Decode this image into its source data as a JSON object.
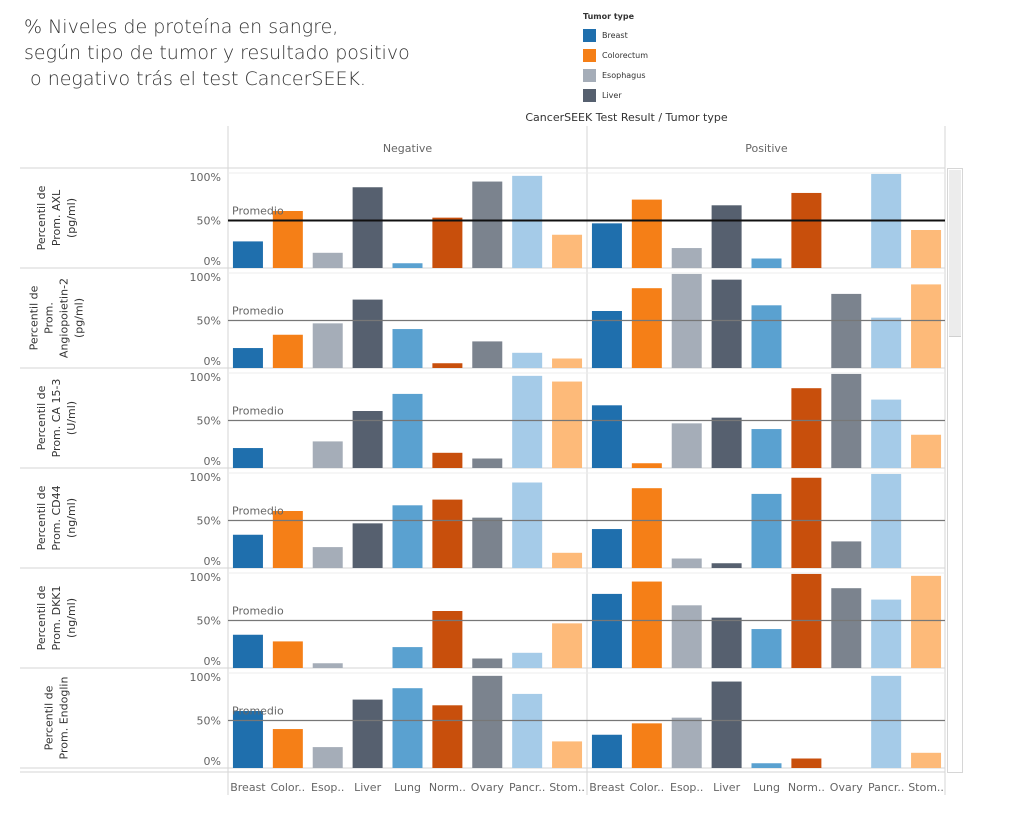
{
  "title_lines": [
    "% Niveles de proteína en sangre,",
    "según tipo de tumor y resultado positivo",
    " o negativo trás el test CancerSEEK."
  ],
  "legend": {
    "title": "Tumor type",
    "items": [
      {
        "label": "Breast",
        "color": "#1f6fad"
      },
      {
        "label": "Colorectum",
        "color": "#f57f17"
      },
      {
        "label": "Esophagus",
        "color": "#a5adb8"
      },
      {
        "label": "Liver",
        "color": "#56606f"
      }
    ]
  },
  "chart_data": {
    "type": "bar",
    "header": "CancerSEEK Test Result  /  Tumor type",
    "columns": [
      "Negative",
      "Positive"
    ],
    "categories": [
      "Breast",
      "Color..",
      "Esop..",
      "Liver",
      "Lung",
      "Norm..",
      "Ovary",
      "Pancr..",
      "Stom.."
    ],
    "category_colors": [
      "#1f6fad",
      "#f57f17",
      "#a5adb8",
      "#56606f",
      "#5aa1d0",
      "#c84f0c",
      "#7b838e",
      "#a5cbe8",
      "#fdba79"
    ],
    "tick_labels": [
      "100%",
      "50%",
      "0%"
    ],
    "ylim": [
      0,
      100
    ],
    "reference_label": "Promedio",
    "reference_value": 50,
    "rows": [
      {
        "label": [
          "Percentil de",
          "Prom. AXL",
          "(pg/ml)"
        ],
        "negative": [
          28,
          60,
          16,
          85,
          5,
          53,
          91,
          97,
          35
        ],
        "positive": [
          47,
          72,
          21,
          66,
          10,
          79,
          0,
          99,
          40
        ]
      },
      {
        "label": [
          "Percentil de",
          "Prom.",
          "Angiopoietin-2",
          "(pg/ml)"
        ],
        "negative": [
          21,
          35,
          47,
          72,
          41,
          5,
          28,
          16,
          10
        ],
        "positive": [
          60,
          84,
          99,
          93,
          66,
          0,
          78,
          53,
          88
        ]
      },
      {
        "label": [
          "Percentil de",
          "Prom. CA 15-3",
          "(U/ml)"
        ],
        "negative": [
          21,
          0,
          28,
          60,
          78,
          16,
          10,
          97,
          91
        ],
        "positive": [
          66,
          5,
          47,
          53,
          41,
          84,
          99,
          72,
          35
        ]
      },
      {
        "label": [
          "Percentil de",
          "Prom. CD44",
          "(ng/ml)"
        ],
        "negative": [
          35,
          60,
          22,
          47,
          66,
          72,
          53,
          90,
          16
        ],
        "positive": [
          41,
          84,
          10,
          5,
          78,
          95,
          28,
          99,
          0
        ]
      },
      {
        "label": [
          "Percentil de",
          "Prom. DKK1",
          "(ng/ml)"
        ],
        "negative": [
          35,
          28,
          5,
          0,
          22,
          60,
          10,
          16,
          47
        ],
        "positive": [
          78,
          91,
          66,
          53,
          41,
          99,
          84,
          72,
          97
        ]
      },
      {
        "label": [
          "Percentil de",
          "Prom. Endoglin"
        ],
        "negative": [
          60,
          41,
          22,
          72,
          84,
          66,
          97,
          78,
          28
        ],
        "positive": [
          35,
          47,
          53,
          91,
          5,
          10,
          0,
          97,
          16
        ]
      }
    ]
  }
}
